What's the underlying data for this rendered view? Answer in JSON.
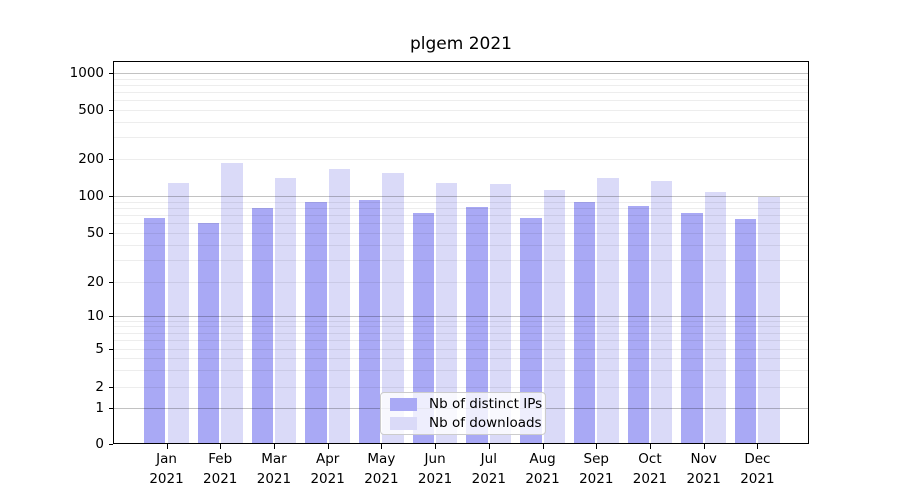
{
  "chart_data": {
    "type": "bar",
    "title": "plgem 2021",
    "categories": [
      "Jan",
      "Feb",
      "Mar",
      "Apr",
      "May",
      "Jun",
      "Jul",
      "Aug",
      "Sep",
      "Oct",
      "Nov",
      "Dec"
    ],
    "category_year": "2021",
    "series": [
      {
        "name": "Nb of distinct IPs",
        "color": "#a9a9f5",
        "values": [
          66,
          60,
          80,
          90,
          94,
          73,
          81,
          67,
          90,
          84,
          73,
          65
        ]
      },
      {
        "name": "Nb of downloads",
        "color": "#dadaf8",
        "values": [
          127,
          183,
          140,
          164,
          152,
          128,
          125,
          112,
          139,
          133,
          108,
          98
        ]
      }
    ],
    "y_ticks": [
      0,
      1,
      2,
      5,
      10,
      20,
      50,
      100,
      200,
      500,
      1000
    ],
    "y_scale": "symlog",
    "ylim": [
      0,
      1250
    ],
    "xlabel": "",
    "ylabel": "",
    "grid": "on",
    "legend_position": "lower center"
  },
  "colors": {
    "background": "#ffffff",
    "spine": "#000000",
    "major_grid": "rgba(0,0,0,0.24)",
    "minor_grid": "rgba(0,0,0,0.07)",
    "text": "#000000"
  }
}
